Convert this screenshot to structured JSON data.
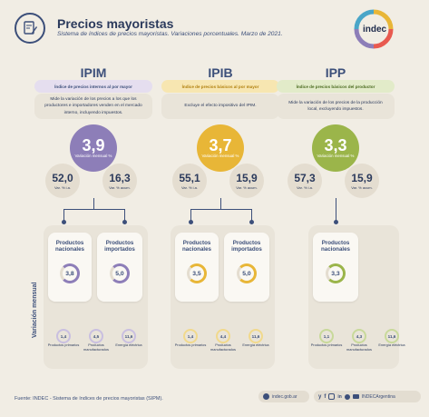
{
  "header": {
    "title": "Precios mayoristas",
    "subtitle": "Sistema de índices de precios mayoristas. Variaciones porcentuales. Marzo de 2021.",
    "logo_text": "indec"
  },
  "colors": {
    "ipim": "#8d7eb8",
    "ipib": "#e8b637",
    "ipp": "#9bb54a",
    "navy": "#3c4f7a"
  },
  "columns": [
    {
      "name": "IPIM",
      "banner": "Índice de precios internos al por mayor",
      "description": "Mide la variación de los precios a los que los productores e importadores venden en el mercado interno, incluyendo impuestos.",
      "main_value": "3,9",
      "main_label": "Variación mensual %",
      "yoy_value": "52,0",
      "yoy_label": "Var. % i.a.",
      "acc_value": "16,3",
      "acc_label": "Var. % acum.",
      "products": [
        {
          "label": "Productos nacionales",
          "value": "3,8"
        },
        {
          "label": "Productos importados",
          "value": "5,0"
        }
      ],
      "sub": [
        {
          "value": "1,4",
          "label": "Productos primarios"
        },
        {
          "value": "4,5",
          "label": "Productos manufacturados"
        },
        {
          "value": "11,6",
          "label": "Energía eléctrica"
        }
      ]
    },
    {
      "name": "IPIB",
      "banner": "Índice de precios básicos al por mayor",
      "description": "Excluye el efecto impositivo del IPIM.",
      "main_value": "3,7",
      "main_label": "Variación mensual %",
      "yoy_value": "55,1",
      "yoy_label": "Var. % i.a.",
      "acc_value": "15,9",
      "acc_label": "Var. % acum.",
      "products": [
        {
          "label": "Productos nacionales",
          "value": "3,5"
        },
        {
          "label": "Productos importados",
          "value": "5,0"
        }
      ],
      "sub": [
        {
          "value": "1,4",
          "label": "Productos primarios"
        },
        {
          "value": "4,4",
          "label": "Productos manufacturados"
        },
        {
          "value": "11,6",
          "label": "Energía eléctrica"
        }
      ]
    },
    {
      "name": "IPP",
      "banner": "Índice de precios básicos del productor",
      "description": "Mide la variación de los precios de la producción local, excluyendo impuestos.",
      "main_value": "3,3",
      "main_label": "Variación mensual %",
      "yoy_value": "57,3",
      "yoy_label": "Var. % i.a.",
      "acc_value": "15,9",
      "acc_label": "Var. % acum.",
      "products": [
        {
          "label": "Productos nacionales",
          "value": "3,3"
        }
      ],
      "sub": [
        {
          "value": "1,1",
          "label": "Productos primarios"
        },
        {
          "value": "4,3",
          "label": "Productos manufacturados"
        },
        {
          "value": "11,6",
          "label": "Energía eléctrica"
        }
      ]
    }
  ],
  "side_label": "Variación mensual",
  "footer": {
    "source": "Fuente: INDEC - Sistema de índices de precios mayoristas (SIPM).",
    "website": "indec.gob.ar",
    "social": "INDECArgentina"
  }
}
